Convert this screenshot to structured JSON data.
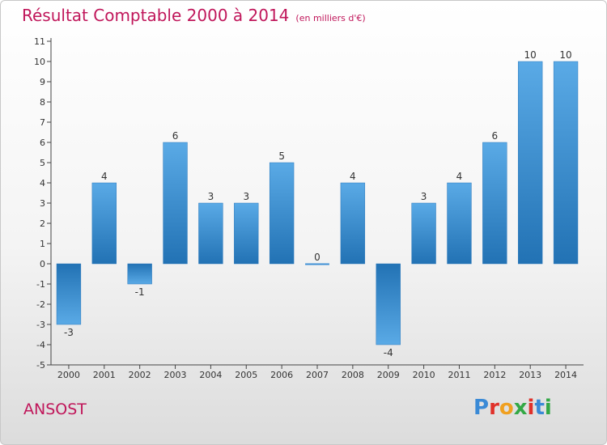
{
  "chart_data": {
    "type": "bar",
    "title": "Résultat Comptable 2000 à 2014",
    "subtitle": "(en milliers d'€)",
    "categories": [
      "2000",
      "2001",
      "2002",
      "2003",
      "2004",
      "2005",
      "2006",
      "2007",
      "2008",
      "2009",
      "2010",
      "2011",
      "2012",
      "2013",
      "2014"
    ],
    "values": [
      -3,
      4,
      -1,
      6,
      3,
      3,
      5,
      0,
      4,
      -4,
      3,
      4,
      6,
      10,
      10
    ],
    "ylim": [
      -5,
      11
    ],
    "yticks": [
      "-5",
      "-4",
      "-3",
      "-2",
      "-1",
      "0",
      "1",
      "2",
      "3",
      "4",
      "5",
      "6",
      "7",
      "8",
      "9",
      "10",
      "11"
    ],
    "ytick_values": [
      -5,
      -4,
      -3,
      -2,
      -1,
      0,
      1,
      2,
      3,
      4,
      5,
      6,
      7,
      8,
      9,
      10,
      11
    ],
    "xlabel": "",
    "ylabel": "",
    "grid": false,
    "bar_color": "#3d8fd4"
  },
  "footer": {
    "place": "ANSOST",
    "logo": "Proxiti",
    "logo_colors": [
      "#3a8ad6",
      "#e0312a",
      "#f0a020",
      "#33a845",
      "#e0312a",
      "#3a8ad6",
      "#33a845"
    ]
  },
  "colors": {
    "accent": "#c0165a"
  }
}
